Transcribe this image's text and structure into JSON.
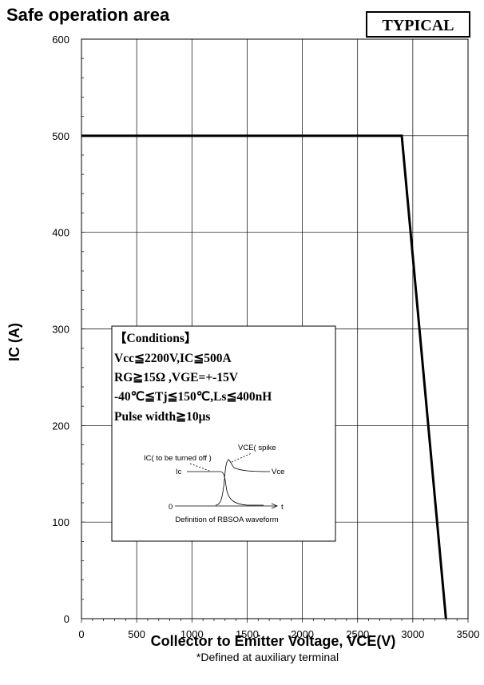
{
  "chart_data": {
    "type": "line",
    "title": "Safe operation area",
    "badge": "TYPICAL",
    "xlabel": "Collector to Emitter Voltage, VCE(V)",
    "ylabel": "IC (A)",
    "footnote": "*Defined at auxiliary terminal",
    "xlim": [
      0,
      3500
    ],
    "ylim": [
      0,
      600
    ],
    "x_ticks": [
      0,
      500,
      1000,
      1500,
      2000,
      2500,
      3000,
      3500
    ],
    "y_ticks": [
      0,
      100,
      200,
      300,
      400,
      500,
      600
    ],
    "x_tick_labels": [
      "0",
      "500",
      "1000",
      "1500",
      "2000",
      "2500",
      "3000",
      "3500"
    ],
    "y_tick_labels": [
      "0",
      "100",
      "200",
      "300",
      "400",
      "500",
      "600"
    ],
    "grid": true,
    "series": [
      {
        "x": [
          0,
          2900,
          3300
        ],
        "y": [
          500,
          500,
          0
        ],
        "color": "#000000"
      }
    ],
    "conditions": {
      "heading": "【Conditions】",
      "lines": [
        "Vcc≦2200V,IC≦500A",
        "RG≧15Ω ,VGE=+-15V",
        "-40℃≦Tj≦150℃,Ls≦400nH",
        "Pulse width≧10μs"
      ],
      "waveform": {
        "caption": "Definition of RBSOA waveform",
        "label_ic_off": "IC( to be turned off )",
        "label_vce_spike": "VCE( spike",
        "label_ic": "Ic",
        "label_vce": "Vce",
        "label_zero": "0",
        "label_t": "t"
      }
    }
  }
}
